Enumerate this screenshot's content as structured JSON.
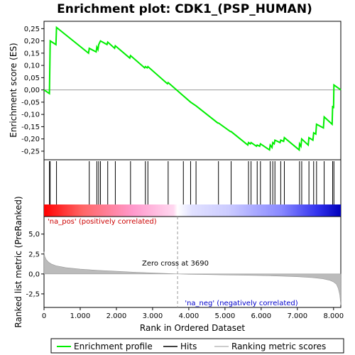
{
  "chart_data": {
    "type": "line",
    "title": "Enrichment plot: CDK1_(PSP_HUMAN)",
    "xlabel": "Rank in Ordered Dataset",
    "es_panel": {
      "ylabel": "Enrichment score (ES)",
      "ylim": [
        -0.285,
        0.28
      ],
      "yticks": [
        0.25,
        0.2,
        0.15,
        0.1,
        0.05,
        0.0,
        -0.05,
        -0.1,
        -0.15,
        -0.2,
        -0.25
      ],
      "ytick_labels": [
        "0,25",
        "0,20",
        "0,15",
        "0,10",
        "0,05",
        "0,00",
        "-0,05",
        "-0,10",
        "-0,15",
        "-0,20",
        "-0,25"
      ],
      "line_color": "#00ee00",
      "es_points": [
        [
          0,
          0.0
        ],
        [
          150,
          -0.015
        ],
        [
          160,
          0.1
        ],
        [
          170,
          0.2
        ],
        [
          330,
          0.185
        ],
        [
          345,
          0.255
        ],
        [
          1230,
          0.15
        ],
        [
          1250,
          0.17
        ],
        [
          1440,
          0.155
        ],
        [
          1460,
          0.175
        ],
        [
          1490,
          0.165
        ],
        [
          1510,
          0.185
        ],
        [
          1560,
          0.2
        ],
        [
          1740,
          0.185
        ],
        [
          1760,
          0.195
        ],
        [
          1950,
          0.17
        ],
        [
          1970,
          0.18
        ],
        [
          2370,
          0.13
        ],
        [
          2390,
          0.14
        ],
        [
          2780,
          0.09
        ],
        [
          2800,
          0.095
        ],
        [
          2850,
          0.09
        ],
        [
          2870,
          0.095
        ],
        [
          3410,
          0.025
        ],
        [
          3430,
          0.03
        ],
        [
          4050,
          -0.05
        ],
        [
          4200,
          -0.065
        ],
        [
          4800,
          -0.135
        ],
        [
          4820,
          -0.135
        ],
        [
          5150,
          -0.17
        ],
        [
          5170,
          -0.17
        ],
        [
          5630,
          -0.225
        ],
        [
          5650,
          -0.215
        ],
        [
          5700,
          -0.22
        ],
        [
          5720,
          -0.215
        ],
        [
          5870,
          -0.23
        ],
        [
          5890,
          -0.225
        ],
        [
          5960,
          -0.23
        ],
        [
          5980,
          -0.22
        ],
        [
          6230,
          -0.245
        ],
        [
          6250,
          -0.225
        ],
        [
          6300,
          -0.235
        ],
        [
          6320,
          -0.215
        ],
        [
          6360,
          -0.22
        ],
        [
          6380,
          -0.205
        ],
        [
          6520,
          -0.215
        ],
        [
          6540,
          -0.205
        ],
        [
          6620,
          -0.21
        ],
        [
          6640,
          -0.195
        ],
        [
          7050,
          -0.245
        ],
        [
          7060,
          -0.22
        ],
        [
          7100,
          -0.23
        ],
        [
          7120,
          -0.2
        ],
        [
          7300,
          -0.225
        ],
        [
          7320,
          -0.195
        ],
        [
          7430,
          -0.205
        ],
        [
          7450,
          -0.175
        ],
        [
          7510,
          -0.18
        ],
        [
          7530,
          -0.14
        ],
        [
          7720,
          -0.155
        ],
        [
          7740,
          -0.11
        ],
        [
          7960,
          -0.14
        ],
        [
          7975,
          -0.065
        ],
        [
          8000,
          -0.075
        ],
        [
          8010,
          0.02
        ],
        [
          8200,
          0.0
        ]
      ]
    },
    "hits_panel": {
      "hit_positions": [
        150,
        170,
        345,
        1250,
        1460,
        1510,
        1560,
        1760,
        1970,
        2390,
        2800,
        2870,
        3430,
        3850,
        4050,
        4200,
        4820,
        5170,
        5650,
        5720,
        5890,
        5980,
        6250,
        6320,
        6380,
        6540,
        6640,
        7060,
        7120,
        7320,
        7450,
        7530,
        7740,
        7975,
        8010
      ]
    },
    "rank_panel": {
      "ylabel": "Ranked list metric (PreRanked)",
      "ylim": [
        -4.2,
        7.2
      ],
      "yticks": [
        5.0,
        2.5,
        0.0,
        -2.5
      ],
      "ytick_labels": [
        "5,0",
        "2,5",
        "0,0",
        "-2,5"
      ],
      "zero_cross": 3690,
      "zero_cross_label": "Zero cross at 3690",
      "pos_label": "'na_pos' (positively correlated)",
      "neg_label": "'na_neg' (negatively correlated)",
      "metric_curve": [
        [
          0,
          2.8
        ],
        [
          20,
          2.2
        ],
        [
          60,
          1.8
        ],
        [
          120,
          1.5
        ],
        [
          200,
          1.25
        ],
        [
          350,
          1.0
        ],
        [
          600,
          0.8
        ],
        [
          1000,
          0.6
        ],
        [
          1500,
          0.45
        ],
        [
          2000,
          0.33
        ],
        [
          2500,
          0.22
        ],
        [
          3000,
          0.13
        ],
        [
          3500,
          0.04
        ],
        [
          3690,
          0.0
        ],
        [
          4000,
          -0.04
        ],
        [
          4500,
          -0.08
        ],
        [
          5000,
          -0.12
        ],
        [
          5500,
          -0.16
        ],
        [
          6000,
          -0.2
        ],
        [
          6500,
          -0.26
        ],
        [
          7000,
          -0.34
        ],
        [
          7400,
          -0.45
        ],
        [
          7700,
          -0.6
        ],
        [
          7900,
          -0.8
        ],
        [
          8000,
          -1.0
        ],
        [
          8080,
          -1.3
        ],
        [
          8130,
          -1.8
        ],
        [
          8170,
          -2.6
        ],
        [
          8200,
          -3.9
        ]
      ]
    },
    "xlim": [
      0,
      8200
    ],
    "xticks": [
      0,
      1000,
      2000,
      3000,
      4000,
      5000,
      6000,
      7000,
      8000
    ],
    "xtick_labels": [
      "0",
      "1.000",
      "2.000",
      "3.000",
      "4.000",
      "5.000",
      "6.000",
      "7.000",
      "8.000"
    ],
    "legend": {
      "placement": "bottom",
      "entries": [
        {
          "label": "Enrichment profile",
          "color": "#00ee00"
        },
        {
          "label": "Hits",
          "color": "#000000"
        },
        {
          "label": "Ranking metric scores",
          "color": "#bbbbbb"
        }
      ]
    }
  }
}
